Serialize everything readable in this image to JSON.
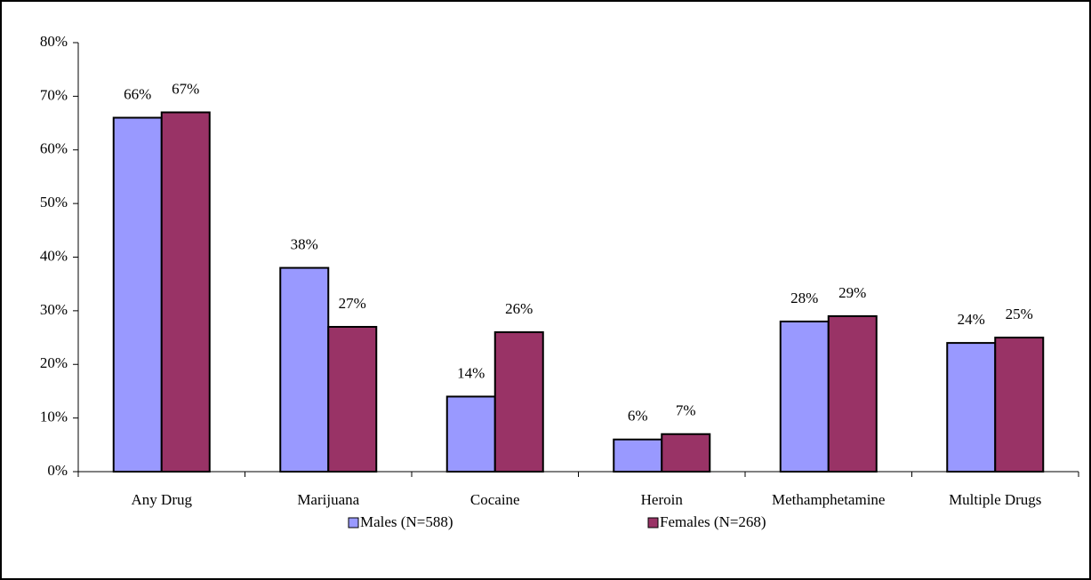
{
  "chart_data": {
    "type": "bar",
    "categories": [
      "Any Drug",
      "Marijuana",
      "Cocaine",
      "Heroin",
      "Methamphetamine",
      "Multiple Drugs"
    ],
    "series": [
      {
        "name": "Males (N=588)",
        "color": "#9999ff",
        "values": [
          66,
          38,
          14,
          6,
          28,
          24
        ],
        "value_labels": [
          "66%",
          "38%",
          "14%",
          "6%",
          "28%",
          "24%"
        ]
      },
      {
        "name": "Females (N=268)",
        "color": "#993366",
        "values": [
          67,
          27,
          26,
          7,
          29,
          25
        ],
        "value_labels": [
          "67%",
          "27%",
          "26%",
          "7%",
          "29%",
          "25%"
        ]
      }
    ],
    "ylim": [
      0,
      80
    ],
    "yticks": [
      {
        "value": 0,
        "label": "0%"
      },
      {
        "value": 10,
        "label": "10%"
      },
      {
        "value": 20,
        "label": "20%"
      },
      {
        "value": 30,
        "label": "30%"
      },
      {
        "value": 40,
        "label": "40%"
      },
      {
        "value": 50,
        "label": "50%"
      },
      {
        "value": 60,
        "label": "60%"
      },
      {
        "value": 70,
        "label": "70%"
      },
      {
        "value": 80,
        "label": "80%"
      }
    ],
    "legend": "bottom"
  }
}
